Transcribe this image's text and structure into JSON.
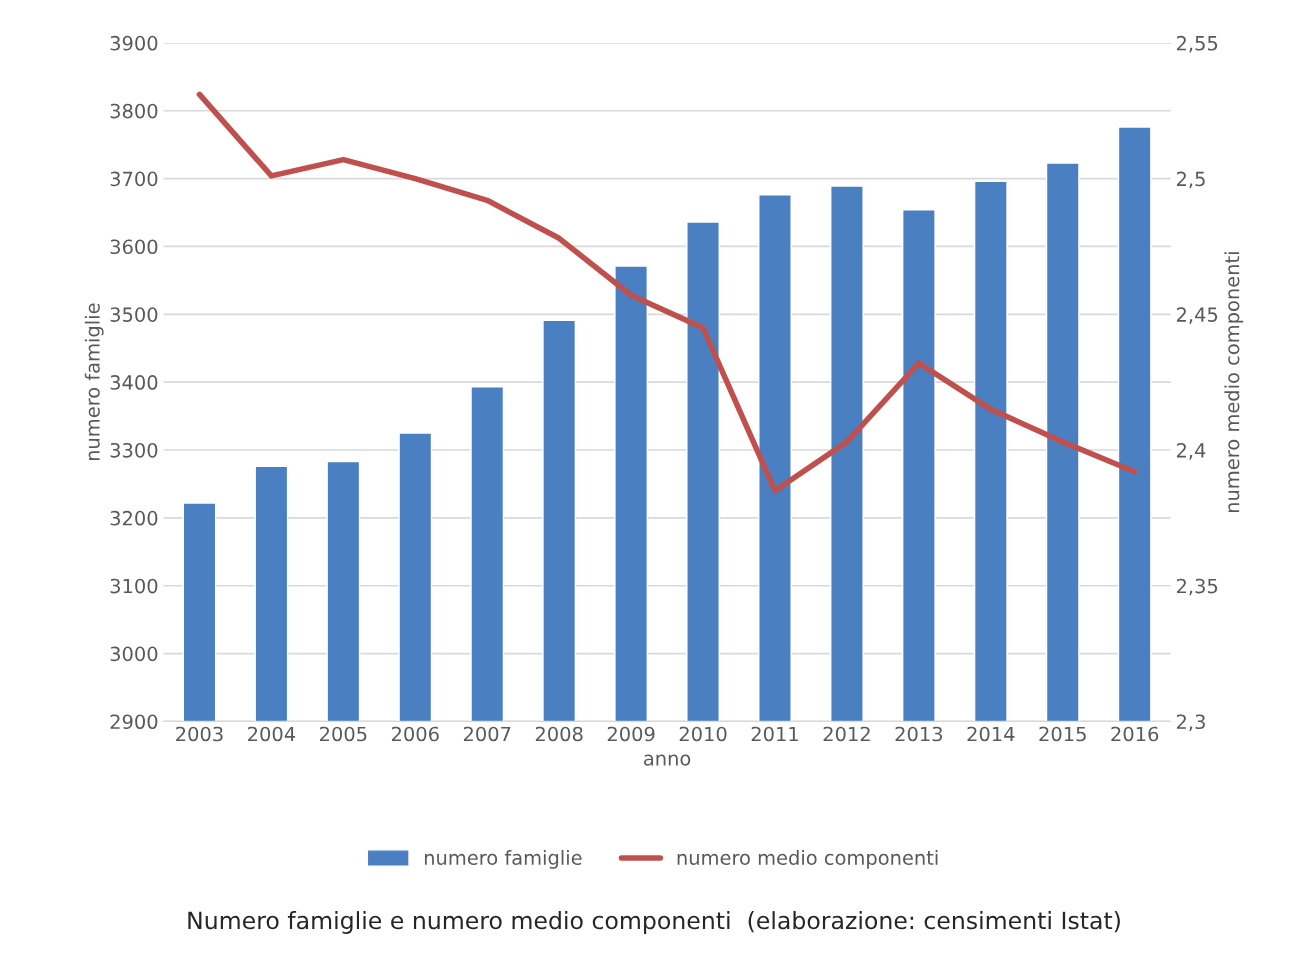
{
  "chart_data": {
    "type": "bar",
    "xlabel": "anno",
    "ylabel": "numero famiglie",
    "y2label": "numero medio componenti",
    "categories": [
      "2003",
      "2004",
      "2005",
      "2006",
      "2007",
      "2008",
      "2009",
      "2010",
      "2011",
      "2012",
      "2013",
      "2014",
      "2015",
      "2016"
    ],
    "series": [
      {
        "name": "numero famiglie",
        "color": "#4a7fc1",
        "values": [
          3222,
          3276,
          3283,
          3325,
          3393,
          3491,
          3571,
          3636,
          3676,
          3689,
          3654,
          3696,
          3723,
          3776
        ]
      },
      {
        "name": "numero medio componenti",
        "type": "line",
        "axis": "y2",
        "color": "#c0504d",
        "values": [
          2.531,
          2.501,
          2.507,
          2.5,
          2.492,
          2.478,
          2.457,
          2.445,
          2.385,
          2.403,
          2.432,
          2.415,
          2.403,
          2.392
        ]
      }
    ],
    "ylim": [
      2900,
      3900
    ],
    "yticks": [
      2900,
      3000,
      3100,
      3200,
      3300,
      3400,
      3500,
      3600,
      3700,
      3800,
      3900
    ],
    "y2lim": [
      2.3,
      2.55
    ],
    "y2ticks": [
      {
        "value": 2.3,
        "label": "2,3"
      },
      {
        "value": 2.35,
        "label": "2,35"
      },
      {
        "value": 2.4,
        "label": "2,4"
      },
      {
        "value": 2.45,
        "label": "2,45"
      },
      {
        "value": 2.5,
        "label": "2,5"
      },
      {
        "value": 2.55,
        "label": "2,55"
      }
    ],
    "grid": "y",
    "legend": "bottom",
    "marker": "none",
    "line_style": "solid",
    "annotations": [
      "Numero famiglie e numero medio componenti  (elaborazione: censimenti Istat)"
    ]
  }
}
